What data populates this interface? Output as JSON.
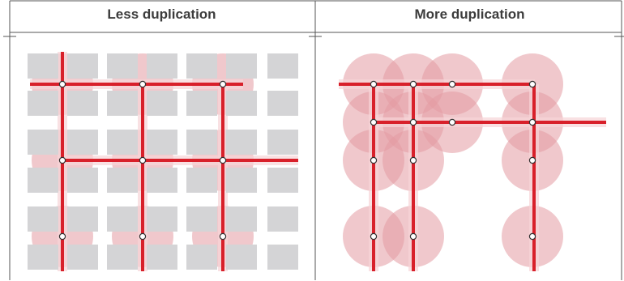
{
  "panels": [
    {
      "title": "Less duplication"
    },
    {
      "title": "More duplication"
    }
  ],
  "colors": {
    "tile": "#d4d4d6",
    "circle": "#e49aa2",
    "line": "#d8202a",
    "node_fill": "#ffffff",
    "node_stroke": "#333333",
    "border": "#555555",
    "title_text": "#3c3c3c"
  }
}
